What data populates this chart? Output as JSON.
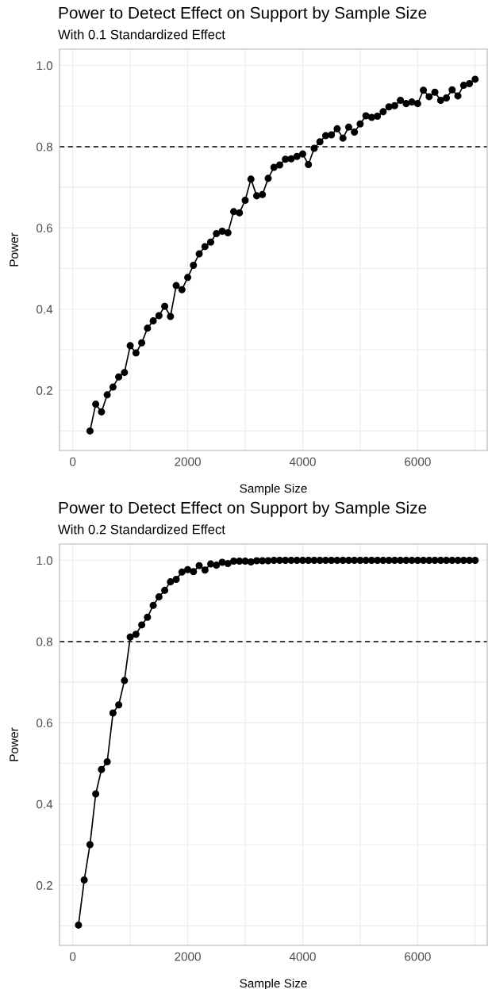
{
  "chart_data": [
    {
      "type": "line",
      "title": "Power to Detect Effect on Support by Sample Size",
      "subtitle": "With 0.1 Standardized Effect",
      "xlabel": "Sample Size",
      "ylabel": "Power",
      "x": [
        300,
        400,
        500,
        600,
        700,
        800,
        900,
        1000,
        1100,
        1200,
        1300,
        1400,
        1500,
        1600,
        1700,
        1800,
        1900,
        2000,
        2100,
        2200,
        2300,
        2400,
        2500,
        2600,
        2700,
        2800,
        2900,
        3000,
        3100,
        3200,
        3300,
        3400,
        3500,
        3600,
        3700,
        3800,
        3900,
        4000,
        4100,
        4200,
        4300,
        4400,
        4500,
        4600,
        4700,
        4800,
        4900,
        5000,
        5100,
        5200,
        5300,
        5400,
        5500,
        5600,
        5700,
        5800,
        5900,
        6000,
        6100,
        6200,
        6300,
        6400,
        6500,
        6600,
        6700,
        6800,
        6900,
        7000
      ],
      "series": [
        {
          "color": "#000000",
          "values": [
            0.1,
            0.166,
            0.147,
            0.189,
            0.208,
            0.233,
            0.244,
            0.31,
            0.292,
            0.317,
            0.353,
            0.371,
            0.384,
            0.407,
            0.382,
            0.458,
            0.448,
            0.478,
            0.508,
            0.536,
            0.554,
            0.565,
            0.586,
            0.592,
            0.588,
            0.64,
            0.637,
            0.668,
            0.72,
            0.679,
            0.682,
            0.722,
            0.749,
            0.755,
            0.769,
            0.77,
            0.776,
            0.782,
            0.756,
            0.796,
            0.812,
            0.827,
            0.829,
            0.844,
            0.821,
            0.848,
            0.836,
            0.856,
            0.876,
            0.872,
            0.875,
            0.886,
            0.898,
            0.901,
            0.914,
            0.906,
            0.91,
            0.906,
            0.939,
            0.923,
            0.934,
            0.914,
            0.92,
            0.94,
            0.925,
            0.951,
            0.955,
            0.966
          ]
        }
      ],
      "xlim": [
        -230,
        7210
      ],
      "ylim": [
        0.052,
        1.04
      ],
      "xticks": [
        0,
        {
          "value": 1000,
          "label": null
        },
        2000,
        {
          "value": 3000,
          "label": null
        },
        4000,
        {
          "value": 5000,
          "label": null
        },
        6000,
        {
          "value": 7000,
          "label": null
        }
      ],
      "yticks": [
        {
          "value": 0.1,
          "label": null
        },
        {
          "value": 0.2,
          "label": "0.2"
        },
        {
          "value": 0.3,
          "label": null
        },
        {
          "value": 0.4,
          "label": "0.4"
        },
        {
          "value": 0.5,
          "label": null
        },
        {
          "value": 0.6,
          "label": "0.6"
        },
        {
          "value": 0.7,
          "label": null
        },
        {
          "value": 0.8,
          "label": "0.8"
        },
        {
          "value": 0.9,
          "label": null
        },
        {
          "value": 1.0,
          "label": "1.0"
        }
      ],
      "ref_lines": [
        {
          "axis": "y",
          "value": 0.8,
          "line_style": "dashed",
          "color": "#000000"
        }
      ],
      "grid": true,
      "marker": "circle",
      "line_style": "solid"
    },
    {
      "type": "line",
      "title": "Power to Detect Effect on Support by Sample Size",
      "subtitle": "With 0.2 Standardized Effect",
      "xlabel": "Sample Size",
      "ylabel": "Power",
      "x": [
        100,
        200,
        300,
        400,
        500,
        600,
        700,
        800,
        900,
        1000,
        1100,
        1200,
        1300,
        1400,
        1500,
        1600,
        1700,
        1800,
        1900,
        2000,
        2100,
        2200,
        2300,
        2400,
        2500,
        2600,
        2700,
        2800,
        2900,
        3000,
        3100,
        3200,
        3300,
        3400,
        3500,
        3600,
        3700,
        3800,
        3900,
        4000,
        4100,
        4200,
        4300,
        4400,
        4500,
        4600,
        4700,
        4800,
        4900,
        5000,
        5100,
        5200,
        5300,
        5400,
        5500,
        5600,
        5700,
        5800,
        5900,
        6000,
        6100,
        6200,
        6300,
        6400,
        6500,
        6600,
        6700,
        6800,
        6900,
        7000
      ],
      "series": [
        {
          "color": "#000000",
          "values": [
            0.102,
            0.213,
            0.3,
            0.425,
            0.485,
            0.504,
            0.624,
            0.644,
            0.704,
            0.811,
            0.818,
            0.841,
            0.86,
            0.889,
            0.91,
            0.926,
            0.947,
            0.953,
            0.971,
            0.977,
            0.972,
            0.987,
            0.976,
            0.991,
            0.988,
            0.995,
            0.992,
            0.998,
            0.998,
            0.998,
            0.996,
            0.999,
            0.999,
            0.999,
            1.0,
            1.0,
            1.0,
            1.0,
            1.0,
            1.0,
            1.0,
            1.0,
            1.0,
            1.0,
            1.0,
            1.0,
            1.0,
            1.0,
            1.0,
            1.0,
            1.0,
            1.0,
            1.0,
            1.0,
            1.0,
            1.0,
            1.0,
            1.0,
            1.0,
            1.0,
            1.0,
            1.0,
            1.0,
            1.0,
            1.0,
            1.0,
            1.0,
            1.0,
            1.0,
            1.0
          ]
        }
      ],
      "xlim": [
        -230,
        7210
      ],
      "ylim": [
        0.052,
        1.04
      ],
      "xticks": [
        0,
        {
          "value": 1000,
          "label": null
        },
        2000,
        {
          "value": 3000,
          "label": null
        },
        4000,
        {
          "value": 5000,
          "label": null
        },
        6000,
        {
          "value": 7000,
          "label": null
        }
      ],
      "yticks": [
        {
          "value": 0.1,
          "label": null
        },
        {
          "value": 0.2,
          "label": "0.2"
        },
        {
          "value": 0.3,
          "label": null
        },
        {
          "value": 0.4,
          "label": "0.4"
        },
        {
          "value": 0.5,
          "label": null
        },
        {
          "value": 0.6,
          "label": "0.6"
        },
        {
          "value": 0.7,
          "label": null
        },
        {
          "value": 0.8,
          "label": "0.8"
        },
        {
          "value": 0.9,
          "label": null
        },
        {
          "value": 1.0,
          "label": "1.0"
        }
      ],
      "ref_lines": [
        {
          "axis": "y",
          "value": 0.8,
          "line_style": "dashed",
          "color": "#000000"
        }
      ],
      "grid": true,
      "marker": "circle",
      "line_style": "solid"
    }
  ]
}
